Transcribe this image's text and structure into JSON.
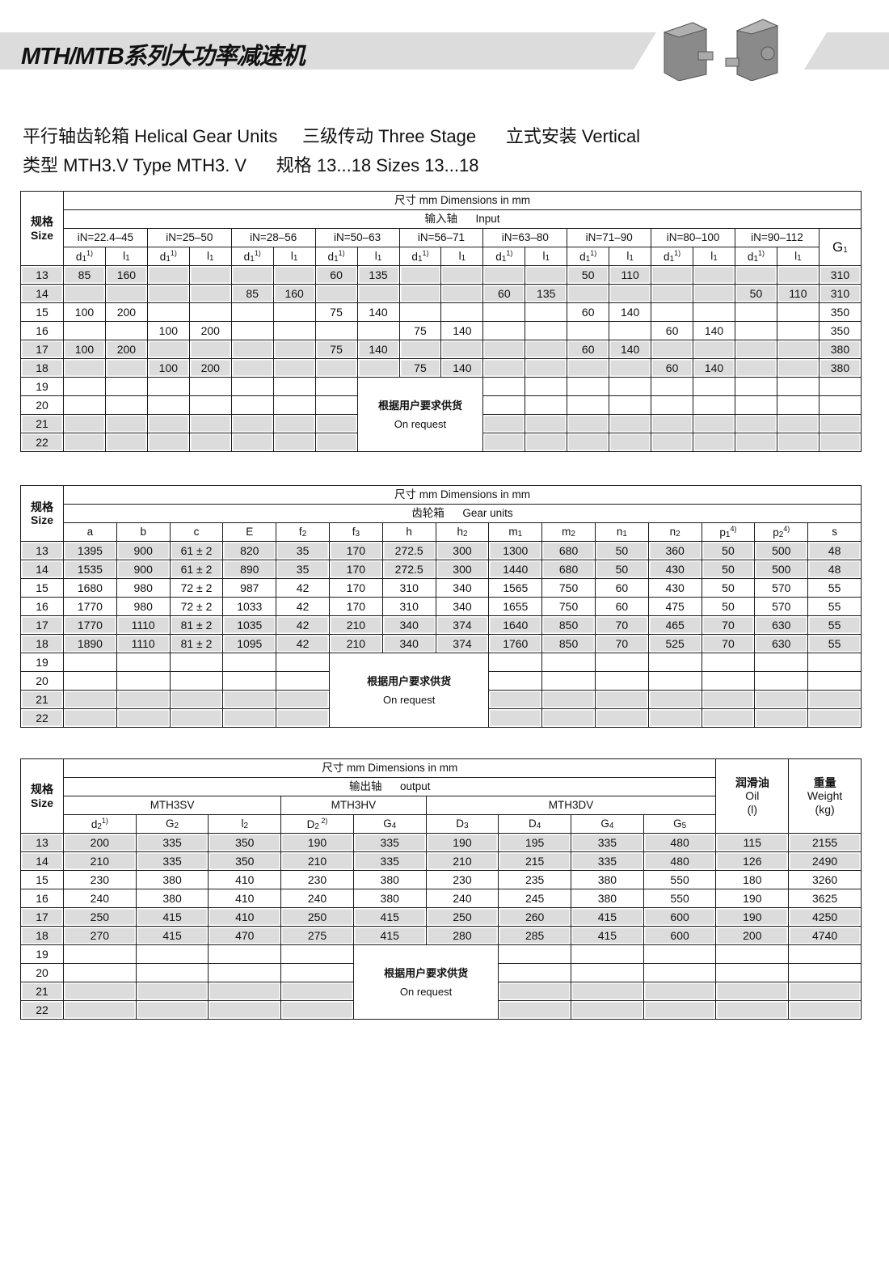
{
  "header": {
    "title": "MTH/MTB系列大功率减速机",
    "line1": "平行轴齿轮箱 Helical Gear Units     三级传动 Three Stage      立式安装 Vertical",
    "line2": "类型 MTH3.V Type MTH3. V      规格 13...18 Sizes 13...18"
  },
  "common": {
    "size_cn": "规格",
    "size_en": "Size",
    "dims": "尺寸 mm Dimensions in mm",
    "request_cn": "根据用户要求供货",
    "request_en": "On request",
    "colors": {
      "shade": "#dcdcdc",
      "border": "#1a1a1a",
      "band": "#dcdcdc"
    }
  },
  "table1": {
    "section": "输入轴      Input",
    "ranges": [
      "iN=22.4–45",
      "iN=25–50",
      "iN=28–56",
      "iN=50–63",
      "iN=56–71",
      "iN=63–80",
      "iN=71–90",
      "iN=80–100",
      "iN=90–112"
    ],
    "sub_cols": [
      {
        "base": "d",
        "sub": "1",
        "sup": "1)"
      },
      {
        "base": "l",
        "sub": "1",
        "sup": ""
      }
    ],
    "last_col": {
      "base": "G",
      "sub": "1",
      "sup": ""
    },
    "request_block": {
      "start": 7,
      "span": 3
    },
    "rows": [
      {
        "size": "13",
        "v": [
          "85",
          "160",
          "",
          "",
          "",
          "",
          "60",
          "135",
          "",
          "",
          "",
          "",
          "50",
          "110",
          "",
          "",
          "",
          "",
          "310"
        ]
      },
      {
        "size": "14",
        "v": [
          "",
          "",
          "",
          "",
          "85",
          "160",
          "",
          "",
          "",
          "",
          "60",
          "135",
          "",
          "",
          "",
          "",
          "50",
          "110",
          "310"
        ]
      },
      {
        "size": "15",
        "v": [
          "100",
          "200",
          "",
          "",
          "",
          "",
          "75",
          "140",
          "",
          "",
          "",
          "",
          "60",
          "140",
          "",
          "",
          "",
          "",
          "350"
        ]
      },
      {
        "size": "16",
        "v": [
          "",
          "",
          "100",
          "200",
          "",
          "",
          "",
          "",
          "75",
          "140",
          "",
          "",
          "",
          "",
          "60",
          "140",
          "",
          "",
          "350"
        ]
      },
      {
        "size": "17",
        "v": [
          "100",
          "200",
          "",
          "",
          "",
          "",
          "75",
          "140",
          "",
          "",
          "",
          "",
          "60",
          "140",
          "",
          "",
          "",
          "",
          "380"
        ]
      },
      {
        "size": "18",
        "v": [
          "",
          "",
          "100",
          "200",
          "",
          "",
          "",
          "",
          "75",
          "140",
          "",
          "",
          "",
          "",
          "60",
          "140",
          "",
          "",
          "380"
        ]
      },
      {
        "size": "19",
        "v": [
          "",
          "",
          "",
          "",
          "",
          "",
          "",
          "",
          "",
          "",
          "",
          "",
          "",
          "",
          "",
          "",
          "",
          "",
          ""
        ]
      },
      {
        "size": "20",
        "v": [
          "",
          "",
          "",
          "",
          "",
          "",
          "",
          "",
          "",
          "",
          "",
          "",
          "",
          "",
          "",
          "",
          "",
          "",
          ""
        ]
      },
      {
        "size": "21",
        "v": [
          "",
          "",
          "",
          "",
          "",
          "",
          "",
          "",
          "",
          "",
          "",
          "",
          "",
          "",
          "",
          "",
          "",
          "",
          ""
        ]
      },
      {
        "size": "22",
        "v": [
          "",
          "",
          "",
          "",
          "",
          "",
          "",
          "",
          "",
          "",
          "",
          "",
          "",
          "",
          "",
          "",
          "",
          "",
          ""
        ]
      }
    ]
  },
  "table2": {
    "section": "齿轮箱      Gear units",
    "cols": [
      {
        "base": "a",
        "sub": "",
        "sup": ""
      },
      {
        "base": "b",
        "sub": "",
        "sup": ""
      },
      {
        "base": "c",
        "sub": "",
        "sup": ""
      },
      {
        "base": "E",
        "sub": "",
        "sup": ""
      },
      {
        "base": "f",
        "sub": "2",
        "sup": ""
      },
      {
        "base": "f",
        "sub": "3",
        "sup": ""
      },
      {
        "base": "h",
        "sub": "",
        "sup": ""
      },
      {
        "base": "h",
        "sub": "2",
        "sup": ""
      },
      {
        "base": "m",
        "sub": "1",
        "sup": ""
      },
      {
        "base": "m",
        "sub": "2",
        "sup": ""
      },
      {
        "base": "n",
        "sub": "1",
        "sup": ""
      },
      {
        "base": "n",
        "sub": "2",
        "sup": ""
      },
      {
        "base": "p",
        "sub": "1",
        "sup": "4)"
      },
      {
        "base": "p",
        "sub": "2",
        "sup": "4)"
      },
      {
        "base": "s",
        "sub": "",
        "sup": ""
      }
    ],
    "request_block": {
      "start": 5,
      "span": 3
    },
    "rows": [
      {
        "size": "13",
        "v": [
          "1395",
          "900",
          "61 ± 2",
          "820",
          "35",
          "170",
          "272.5",
          "300",
          "1300",
          "680",
          "50",
          "360",
          "50",
          "500",
          "48"
        ]
      },
      {
        "size": "14",
        "v": [
          "1535",
          "900",
          "61 ± 2",
          "890",
          "35",
          "170",
          "272.5",
          "300",
          "1440",
          "680",
          "50",
          "430",
          "50",
          "500",
          "48"
        ]
      },
      {
        "size": "15",
        "v": [
          "1680",
          "980",
          "72 ± 2",
          "987",
          "42",
          "170",
          "310",
          "340",
          "1565",
          "750",
          "60",
          "430",
          "50",
          "570",
          "55"
        ]
      },
      {
        "size": "16",
        "v": [
          "1770",
          "980",
          "72 ± 2",
          "1033",
          "42",
          "170",
          "310",
          "340",
          "1655",
          "750",
          "60",
          "475",
          "50",
          "570",
          "55"
        ]
      },
      {
        "size": "17",
        "v": [
          "1770",
          "1110",
          "81 ± 2",
          "1035",
          "42",
          "210",
          "340",
          "374",
          "1640",
          "850",
          "70",
          "465",
          "70",
          "630",
          "55"
        ]
      },
      {
        "size": "18",
        "v": [
          "1890",
          "1110",
          "81 ± 2",
          "1095",
          "42",
          "210",
          "340",
          "374",
          "1760",
          "850",
          "70",
          "525",
          "70",
          "630",
          "55"
        ]
      },
      {
        "size": "19",
        "v": [
          "",
          "",
          "",
          "",
          "",
          "",
          "",
          "",
          "",
          "",
          "",
          "",
          "",
          "",
          ""
        ]
      },
      {
        "size": "20",
        "v": [
          "",
          "",
          "",
          "",
          "",
          "",
          "",
          "",
          "",
          "",
          "",
          "",
          "",
          "",
          ""
        ]
      },
      {
        "size": "21",
        "v": [
          "",
          "",
          "",
          "",
          "",
          "",
          "",
          "",
          "",
          "",
          "",
          "",
          "",
          "",
          ""
        ]
      },
      {
        "size": "22",
        "v": [
          "",
          "",
          "",
          "",
          "",
          "",
          "",
          "",
          "",
          "",
          "",
          "",
          "",
          "",
          ""
        ]
      }
    ]
  },
  "table3": {
    "section": "输出轴      output",
    "groups": [
      "MTH3SV",
      "MTH3HV",
      "MTH3DV"
    ],
    "oil": [
      "润滑油",
      "Oil",
      "(l)"
    ],
    "weight": [
      "重量",
      "Weight",
      "(kg)"
    ],
    "cols": [
      {
        "base": "d",
        "sub": "2",
        "sup": "1)"
      },
      {
        "base": "G",
        "sub": "2",
        "sup": ""
      },
      {
        "base": "l",
        "sub": "2",
        "sup": ""
      },
      {
        "base": "D",
        "sub": "2",
        "sup": " 2)"
      },
      {
        "base": "G",
        "sub": "4",
        "sup": ""
      },
      {
        "base": "D",
        "sub": "3",
        "sup": ""
      },
      {
        "base": "D",
        "sub": "4",
        "sup": ""
      },
      {
        "base": "G",
        "sub": "4",
        "sup": ""
      },
      {
        "base": "G",
        "sub": "5",
        "sup": ""
      }
    ],
    "request_block": {
      "start": 4,
      "span": 2
    },
    "rows": [
      {
        "size": "13",
        "v": [
          "200",
          "335",
          "350",
          "190",
          "335",
          "190",
          "195",
          "335",
          "480",
          "115",
          "2155"
        ]
      },
      {
        "size": "14",
        "v": [
          "210",
          "335",
          "350",
          "210",
          "335",
          "210",
          "215",
          "335",
          "480",
          "126",
          "2490"
        ]
      },
      {
        "size": "15",
        "v": [
          "230",
          "380",
          "410",
          "230",
          "380",
          "230",
          "235",
          "380",
          "550",
          "180",
          "3260"
        ]
      },
      {
        "size": "16",
        "v": [
          "240",
          "380",
          "410",
          "240",
          "380",
          "240",
          "245",
          "380",
          "550",
          "190",
          "3625"
        ]
      },
      {
        "size": "17",
        "v": [
          "250",
          "415",
          "410",
          "250",
          "415",
          "250",
          "260",
          "415",
          "600",
          "190",
          "4250"
        ]
      },
      {
        "size": "18",
        "v": [
          "270",
          "415",
          "470",
          "275",
          "415",
          "280",
          "285",
          "415",
          "600",
          "200",
          "4740"
        ]
      },
      {
        "size": "19",
        "v": [
          "",
          "",
          "",
          "",
          "",
          "",
          "",
          "",
          "",
          "",
          ""
        ]
      },
      {
        "size": "20",
        "v": [
          "",
          "",
          "",
          "",
          "",
          "",
          "",
          "",
          "",
          "",
          ""
        ]
      },
      {
        "size": "21",
        "v": [
          "",
          "",
          "",
          "",
          "",
          "",
          "",
          "",
          "",
          "",
          ""
        ]
      },
      {
        "size": "22",
        "v": [
          "",
          "",
          "",
          "",
          "",
          "",
          "",
          "",
          "",
          "",
          ""
        ]
      }
    ]
  }
}
